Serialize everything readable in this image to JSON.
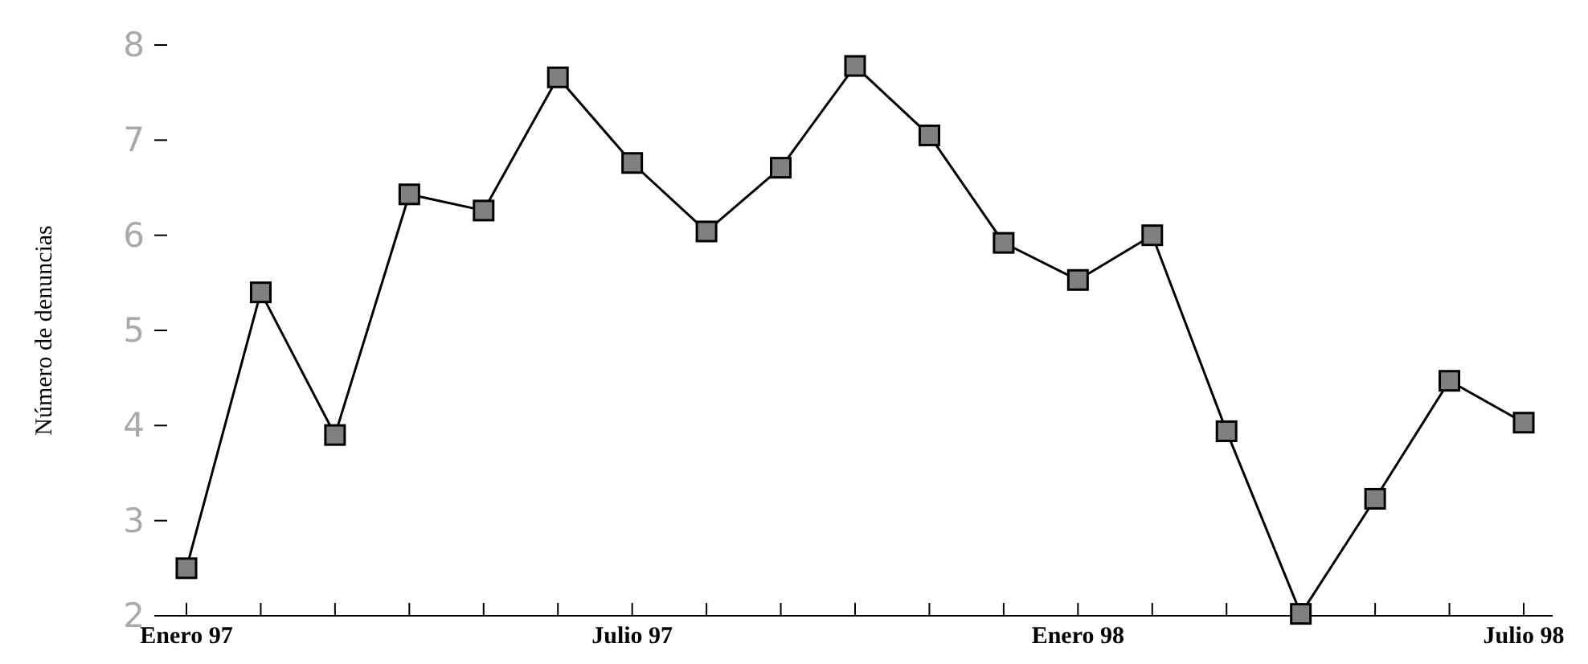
{
  "chart_data": {
    "type": "line",
    "ylabel": "Número de denuncias",
    "categories": [
      "Enero 97",
      null,
      null,
      null,
      null,
      null,
      "Julio 97",
      null,
      null,
      null,
      null,
      null,
      "Enero 98",
      null,
      null,
      null,
      null,
      null,
      "Julio 98"
    ],
    "series": [
      {
        "color": "#808080",
        "values": [
          2.5,
          5.4,
          3.9,
          6.43,
          6.26,
          7.66,
          6.76,
          6.04,
          6.71,
          7.78,
          7.05,
          5.92,
          5.53,
          6.0,
          3.94,
          2.02,
          3.23,
          4.47,
          4.03
        ]
      }
    ],
    "ylim": [
      2,
      8
    ],
    "yticks": [
      2,
      3,
      4,
      5,
      6,
      7,
      8
    ],
    "marker": "square",
    "line_style": "solid"
  }
}
